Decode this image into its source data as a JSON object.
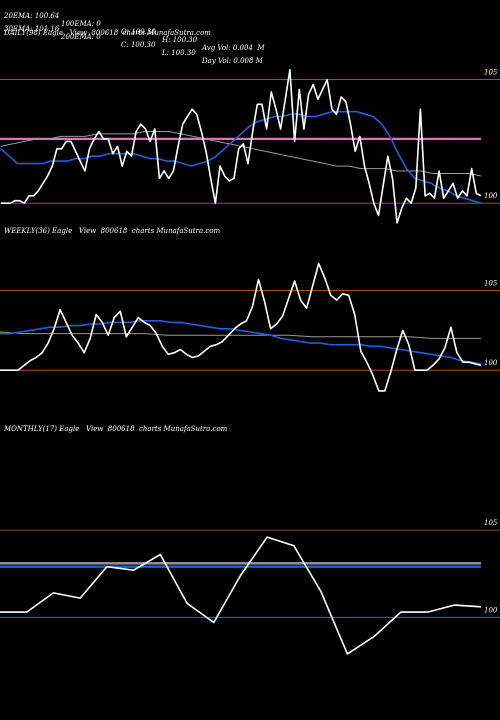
{
  "header": {
    "row1": [
      "20EMA: 100.64",
      "100EMA: 0",
      "O: 100.30",
      "H: 100.30",
      "Avg Vol: 0.004  M"
    ],
    "row2": [
      "30EMA: 101.16",
      "200EMA: 0",
      "C: 100.30",
      "L: 100.30",
      "Day Vol: 0.008 M"
    ]
  },
  "panels": [
    {
      "title": "DAILY(98) Eagle   View  800618  charts MunafaSutra.com"
    },
    {
      "title": "WEEKLY(36) Eagle   View  800618  charts MunafaSutra.com"
    },
    {
      "title": "MONTHLY(17) Eagle   View  800618  charts MunafaSutra.com"
    }
  ],
  "colors": {
    "background": "#000000",
    "price": "#ffffff",
    "ema_blue": "#1f5fe0",
    "ema_grey": "#9a9a9a",
    "ref_line": "#b0602a",
    "pink": "#e070b8"
  },
  "chart_data": [
    {
      "type": "line",
      "title": "DAILY(98) Eagle View 800618 charts MunafaSutra.com",
      "ylim": [
        99.4,
        106.6
      ],
      "y_ticks": [
        {
          "label": "105",
          "value": 105
        },
        {
          "label": "100",
          "value": 100
        }
      ],
      "pink_level": 102.6,
      "series": [
        {
          "role": "price",
          "values": [
            100.0,
            100.0,
            100.0,
            100.1,
            100.1,
            100.0,
            100.3,
            100.3,
            100.5,
            100.8,
            101.1,
            101.5,
            102.2,
            102.2,
            102.5,
            102.5,
            102.1,
            101.7,
            101.3,
            102.2,
            102.6,
            102.9,
            102.6,
            102.6,
            102.0,
            102.3,
            101.5,
            102.1,
            101.9,
            102.9,
            103.2,
            103.0,
            102.5,
            103.0,
            101.0,
            101.3,
            101.0,
            101.3,
            102.3,
            103.2,
            103.5,
            103.8,
            103.6,
            102.9,
            102.1,
            101.0,
            100.0,
            101.5,
            101.1,
            100.9,
            101.0,
            102.2,
            102.4,
            101.6,
            102.9,
            104.0,
            104.0,
            103.0,
            104.5,
            103.8,
            103.0,
            104.2,
            105.4,
            102.5,
            104.6,
            103.0,
            104.4,
            104.8,
            104.2,
            104.6,
            105.0,
            103.8,
            103.6,
            104.3,
            104.1,
            103.2,
            102.1,
            102.7,
            101.5,
            100.8,
            100.0,
            99.5,
            100.7,
            101.9,
            101.0,
            99.2,
            99.8,
            100.2,
            100.0,
            100.6,
            103.8,
            100.3,
            100.4,
            100.2,
            101.3,
            100.2,
            100.5,
            100.8,
            100.2,
            100.5,
            100.3,
            101.4,
            100.4,
            100.3
          ]
        },
        {
          "role": "ema-blue",
          "values": [
            102.2,
            101.9,
            101.6,
            101.6,
            101.6,
            101.6,
            101.7,
            101.7,
            101.7,
            101.8,
            101.8,
            101.9,
            101.9,
            102.0,
            102.0,
            102.0,
            102.0,
            101.9,
            101.8,
            101.8,
            101.7,
            101.7,
            101.6,
            101.5,
            101.6,
            101.7,
            101.9,
            102.2,
            102.5,
            102.8,
            103.1,
            103.3,
            103.4,
            103.5,
            103.5,
            103.6,
            103.6,
            103.5,
            103.5,
            103.6,
            103.7,
            103.7,
            103.7,
            103.7,
            103.6,
            103.5,
            103.2,
            102.7,
            102.0,
            101.4,
            101.0,
            100.9,
            100.8,
            100.6,
            100.5,
            100.3,
            100.2,
            100.1,
            100.0
          ]
        },
        {
          "role": "ema-grey",
          "values": [
            102.3,
            102.4,
            102.5,
            102.6,
            102.6,
            102.7,
            102.7,
            102.7,
            102.8,
            102.8,
            102.8,
            102.8,
            102.9,
            102.9,
            102.9,
            102.8,
            102.7,
            102.6,
            102.5,
            102.4,
            102.3,
            102.2,
            102.1,
            102.0,
            101.9,
            101.8,
            101.7,
            101.6,
            101.5,
            101.5,
            101.4,
            101.4,
            101.4,
            101.3,
            101.3,
            101.3,
            101.2,
            101.2,
            101.2,
            101.2,
            101.1
          ]
        }
      ]
    },
    {
      "type": "line",
      "title": "WEEKLY(36) Eagle View 800618 charts MunafaSutra.com",
      "ylim": [
        97.0,
        108.3
      ],
      "y_ticks": [
        {
          "label": "105",
          "value": 105
        },
        {
          "label": "100",
          "value": 100
        }
      ],
      "pink_level": null,
      "series": [
        {
          "role": "price",
          "values": [
            100.0,
            100.0,
            100.0,
            100.0,
            100.3,
            100.6,
            100.8,
            101.1,
            101.7,
            102.6,
            103.8,
            103.0,
            102.2,
            101.7,
            101.1,
            102.0,
            103.5,
            103.0,
            102.2,
            103.3,
            103.7,
            102.1,
            102.7,
            103.3,
            103.0,
            102.8,
            102.3,
            101.5,
            101.0,
            101.1,
            101.3,
            101.0,
            100.8,
            100.9,
            101.2,
            101.5,
            101.6,
            101.8,
            102.2,
            102.6,
            102.9,
            103.1,
            104.0,
            105.7,
            104.3,
            102.6,
            102.9,
            103.4,
            104.5,
            105.6,
            104.4,
            103.9,
            105.3,
            106.7,
            105.8,
            104.7,
            104.4,
            104.8,
            104.7,
            103.5,
            101.2,
            100.5,
            99.7,
            98.7,
            98.7,
            99.9,
            101.3,
            102.5,
            101.6,
            100.0,
            100.0,
            100.0,
            100.3,
            100.7,
            101.4,
            102.7,
            101.1,
            100.5,
            100.5,
            100.4,
            100.3
          ]
        },
        {
          "role": "ema-blue",
          "values": [
            102.3,
            102.3,
            102.4,
            102.5,
            102.6,
            102.7,
            102.7,
            102.8,
            102.8,
            102.9,
            102.9,
            103.0,
            103.0,
            103.0,
            103.1,
            103.1,
            103.1,
            103.0,
            103.0,
            102.9,
            102.8,
            102.7,
            102.6,
            102.6,
            102.5,
            102.4,
            102.3,
            102.2,
            102.0,
            101.9,
            101.8,
            101.7,
            101.7,
            101.6,
            101.6,
            101.6,
            101.6,
            101.5,
            101.5,
            101.4,
            101.3,
            101.2,
            101.1,
            101.0,
            100.9,
            100.8,
            100.6,
            100.5,
            100.4
          ]
        },
        {
          "role": "ema-grey",
          "values": [
            102.4,
            102.3,
            102.3,
            102.3,
            102.3,
            102.3,
            102.3,
            102.2,
            102.2,
            102.2,
            102.2,
            102.2,
            102.2,
            102.1,
            102.1,
            102.1,
            102.1,
            102.1,
            102.0,
            102.0,
            102.0
          ]
        }
      ]
    },
    {
      "type": "line",
      "title": "MONTHLY(17) Eagle View 800618 charts MunafaSutra.com",
      "ylim": [
        95.6,
        110.4
      ],
      "y_ticks": [
        {
          "label": "105",
          "value": 105
        },
        {
          "label": "100",
          "value": 100
        }
      ],
      "pink_level": null,
      "series": [
        {
          "role": "price",
          "values": [
            100.3,
            100.3,
            101.4,
            101.1,
            102.9,
            102.7,
            103.6,
            100.8,
            99.7,
            102.4,
            104.6,
            104.1,
            101.5,
            97.9,
            98.9,
            100.3,
            100.3,
            100.7,
            100.6
          ]
        },
        {
          "role": "ema-blue",
          "values": [
            102.9,
            102.9
          ]
        },
        {
          "role": "ema-grey",
          "values": [
            103.1,
            103.1
          ]
        }
      ]
    }
  ]
}
